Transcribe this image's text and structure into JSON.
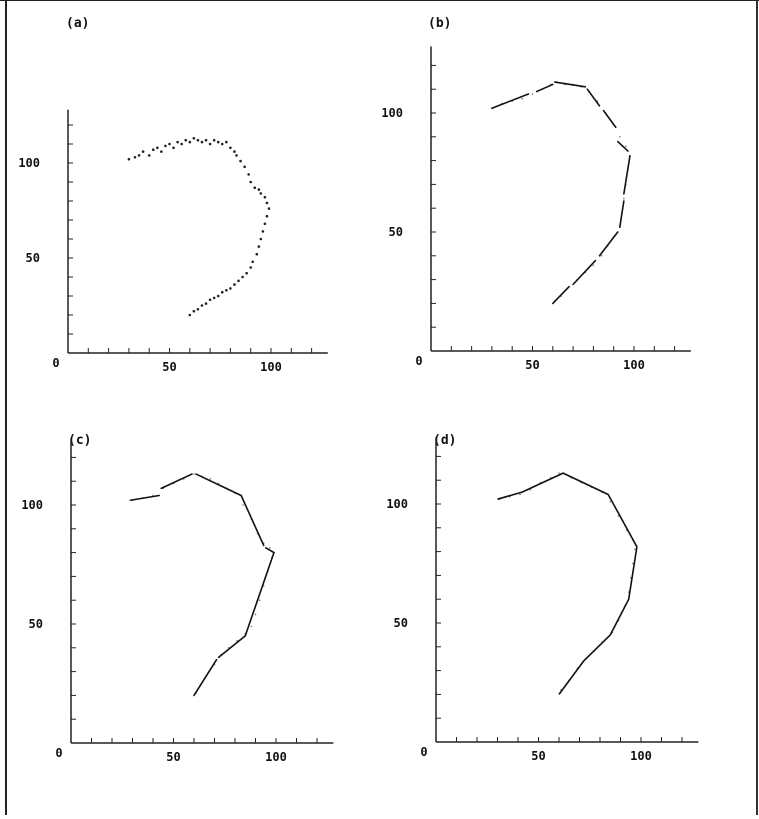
{
  "figure": {
    "panels": [
      {
        "label": "(a)",
        "mode": "points"
      },
      {
        "label": "(b)",
        "mode": "segments"
      },
      {
        "label": "(c)",
        "mode": "segments"
      },
      {
        "label": "(d)",
        "mode": "polyline"
      }
    ]
  },
  "chart_data": [
    {
      "type": "scatter",
      "panel": "(a)",
      "title": "",
      "xlabel": "",
      "ylabel": "",
      "xlim": [
        0,
        128
      ],
      "ylim": [
        0,
        128
      ],
      "x_ticks": [
        0,
        50,
        100
      ],
      "y_ticks": [
        50,
        100
      ],
      "grid": false,
      "series": [
        {
          "points": [
            [
              30,
              102
            ],
            [
              33,
              103
            ],
            [
              35,
              104
            ],
            [
              37,
              106
            ],
            [
              40,
              104
            ],
            [
              42,
              107
            ],
            [
              44,
              108
            ],
            [
              46,
              106
            ],
            [
              48,
              109
            ],
            [
              50,
              110
            ],
            [
              52,
              108
            ],
            [
              54,
              111
            ],
            [
              56,
              110
            ],
            [
              58,
              112
            ],
            [
              60,
              111
            ],
            [
              62,
              113
            ],
            [
              64,
              112
            ],
            [
              66,
              111
            ],
            [
              68,
              112
            ],
            [
              70,
              110
            ],
            [
              72,
              112
            ],
            [
              74,
              111
            ],
            [
              76,
              110
            ],
            [
              78,
              111
            ],
            [
              80,
              108
            ],
            [
              82,
              106
            ],
            [
              83,
              104
            ],
            [
              85,
              101
            ],
            [
              87,
              98
            ],
            [
              89,
              94
            ],
            [
              90,
              90
            ],
            [
              92,
              87
            ],
            [
              94,
              86
            ],
            [
              95,
              84
            ],
            [
              97,
              82
            ],
            [
              98,
              79
            ],
            [
              99,
              76
            ],
            [
              98,
              72
            ],
            [
              97,
              68
            ],
            [
              96,
              64
            ],
            [
              95,
              60
            ],
            [
              94,
              56
            ],
            [
              93,
              52
            ],
            [
              91,
              48
            ],
            [
              90,
              45
            ],
            [
              88,
              42
            ],
            [
              86,
              40
            ],
            [
              84,
              38
            ],
            [
              82,
              36
            ],
            [
              80,
              34
            ],
            [
              78,
              33
            ],
            [
              76,
              32
            ],
            [
              74,
              30
            ],
            [
              72,
              29
            ],
            [
              70,
              28
            ],
            [
              68,
              26
            ],
            [
              66,
              25
            ],
            [
              64,
              23
            ],
            [
              62,
              22
            ],
            [
              60,
              20
            ]
          ]
        }
      ]
    },
    {
      "type": "line",
      "panel": "(b)",
      "title": "",
      "xlabel": "",
      "ylabel": "",
      "xlim": [
        0,
        128
      ],
      "ylim": [
        0,
        128
      ],
      "x_ticks": [
        0,
        50,
        100
      ],
      "y_ticks": [
        50,
        100
      ],
      "grid": false,
      "segments": [
        [
          [
            30,
            102
          ],
          [
            48,
            108
          ]
        ],
        [
          [
            52,
            109
          ],
          [
            60,
            112
          ]
        ],
        [
          [
            61,
            113
          ],
          [
            76,
            111
          ]
        ],
        [
          [
            77,
            110
          ],
          [
            83,
            103
          ]
        ],
        [
          [
            85,
            101
          ],
          [
            91,
            94
          ]
        ],
        [
          [
            92,
            88
          ],
          [
            97,
            84
          ]
        ],
        [
          [
            98,
            82
          ],
          [
            95,
            66
          ]
        ],
        [
          [
            95,
            63
          ],
          [
            93,
            52
          ]
        ],
        [
          [
            92,
            50
          ],
          [
            83,
            40
          ]
        ],
        [
          [
            81,
            38
          ],
          [
            70,
            28
          ]
        ],
        [
          [
            68,
            27
          ],
          [
            60,
            20
          ]
        ]
      ],
      "points": [
        [
          30,
          102
        ],
        [
          35,
          104
        ],
        [
          40,
          105
        ],
        [
          45,
          106
        ],
        [
          50,
          108
        ],
        [
          55,
          110
        ],
        [
          59,
          112
        ],
        [
          62,
          113
        ],
        [
          66,
          112
        ],
        [
          70,
          112
        ],
        [
          74,
          111
        ],
        [
          78,
          109
        ],
        [
          82,
          105
        ],
        [
          86,
          100
        ],
        [
          90,
          95
        ],
        [
          93,
          90
        ],
        [
          96,
          86
        ],
        [
          98,
          82
        ],
        [
          97,
          76
        ],
        [
          96,
          70
        ],
        [
          95,
          64
        ],
        [
          94,
          58
        ],
        [
          93,
          52
        ],
        [
          90,
          48
        ],
        [
          87,
          44
        ],
        [
          84,
          40
        ],
        [
          80,
          36
        ],
        [
          76,
          33
        ],
        [
          72,
          30
        ],
        [
          68,
          27
        ],
        [
          64,
          23
        ],
        [
          61,
          21
        ]
      ]
    },
    {
      "type": "line",
      "panel": "(c)",
      "title": "",
      "xlabel": "",
      "ylabel": "",
      "xlim": [
        0,
        128
      ],
      "ylim": [
        0,
        128
      ],
      "x_ticks": [
        0,
        50,
        100
      ],
      "y_ticks": [
        50,
        100
      ],
      "grid": false,
      "segments": [
        [
          [
            29,
            102
          ],
          [
            43,
            104
          ]
        ],
        [
          [
            44,
            107
          ],
          [
            59,
            113
          ]
        ],
        [
          [
            61,
            113
          ],
          [
            83,
            104
          ]
        ],
        [
          [
            83,
            104
          ],
          [
            94,
            83
          ]
        ],
        [
          [
            95,
            82
          ],
          [
            99,
            80
          ]
        ],
        [
          [
            99,
            80
          ],
          [
            85,
            45
          ]
        ],
        [
          [
            85,
            45
          ],
          [
            72,
            36
          ]
        ],
        [
          [
            71,
            35
          ],
          [
            60,
            20
          ]
        ]
      ],
      "points": [
        [
          30,
          102
        ],
        [
          35,
          103
        ],
        [
          40,
          104
        ],
        [
          45,
          107
        ],
        [
          50,
          109
        ],
        [
          55,
          111
        ],
        [
          60,
          113
        ],
        [
          64,
          112
        ],
        [
          68,
          111
        ],
        [
          72,
          109
        ],
        [
          76,
          107
        ],
        [
          80,
          105
        ],
        [
          84,
          100
        ],
        [
          88,
          94
        ],
        [
          91,
          88
        ],
        [
          94,
          84
        ],
        [
          97,
          82
        ],
        [
          98,
          78
        ],
        [
          96,
          72
        ],
        [
          94,
          66
        ],
        [
          92,
          60
        ],
        [
          90,
          54
        ],
        [
          88,
          49
        ],
        [
          85,
          46
        ],
        [
          81,
          43
        ],
        [
          77,
          40
        ],
        [
          73,
          37
        ],
        [
          70,
          33
        ],
        [
          66,
          28
        ],
        [
          63,
          24
        ],
        [
          61,
          21
        ]
      ]
    },
    {
      "type": "line",
      "panel": "(d)",
      "title": "",
      "xlabel": "",
      "ylabel": "",
      "xlim": [
        0,
        128
      ],
      "ylim": [
        0,
        128
      ],
      "x_ticks": [
        0,
        50,
        100
      ],
      "y_ticks": [
        50,
        100
      ],
      "grid": false,
      "series": [
        {
          "values": [
            [
              30,
              102
            ],
            [
              42,
              105
            ],
            [
              62,
              113
            ],
            [
              84,
              104
            ],
            [
              98,
              82
            ],
            [
              94,
              60
            ],
            [
              85,
              45
            ],
            [
              72,
              34
            ],
            [
              60,
              20
            ]
          ]
        }
      ],
      "points": [
        [
          31,
          102
        ],
        [
          36,
          103
        ],
        [
          41,
          104
        ],
        [
          46,
          106
        ],
        [
          51,
          109
        ],
        [
          56,
          111
        ],
        [
          60,
          113
        ],
        [
          66,
          111
        ],
        [
          71,
          109
        ],
        [
          76,
          107
        ],
        [
          81,
          105
        ],
        [
          85,
          101
        ],
        [
          89,
          95
        ],
        [
          93,
          89
        ],
        [
          96,
          85
        ],
        [
          97,
          81
        ],
        [
          96,
          75
        ],
        [
          95,
          69
        ],
        [
          94,
          63
        ],
        [
          92,
          57
        ],
        [
          89,
          51
        ],
        [
          86,
          46
        ],
        [
          81,
          42
        ],
        [
          77,
          38
        ],
        [
          73,
          35
        ],
        [
          69,
          31
        ],
        [
          65,
          26
        ],
        [
          61,
          22
        ]
      ]
    }
  ]
}
